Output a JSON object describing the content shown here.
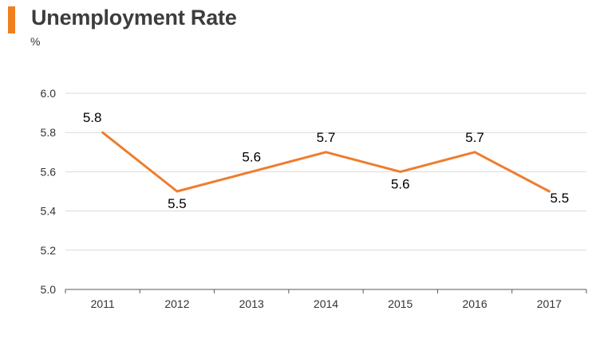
{
  "colors": {
    "accent": "#f07f1f",
    "line": "#ee7d2e",
    "grid": "#d9d9d9",
    "axis": "#595959"
  },
  "chart_data": {
    "type": "line",
    "title": "Unemployment Rate",
    "ylabel": "%",
    "xlabel": "",
    "categories": [
      "2011",
      "2012",
      "2013",
      "2014",
      "2015",
      "2016",
      "2017"
    ],
    "series": [
      {
        "values": [
          5.8,
          5.5,
          5.6,
          5.7,
          5.6,
          5.7,
          5.5
        ]
      }
    ],
    "data_labels": [
      "5.8",
      "5.5",
      "5.6",
      "5.7",
      "5.6",
      "5.7",
      "5.5"
    ],
    "yticks": [
      "5.0",
      "5.2",
      "5.4",
      "5.6",
      "5.8",
      "6.0"
    ],
    "ylim": [
      5.0,
      6.0
    ],
    "grid": true,
    "legend": false
  }
}
